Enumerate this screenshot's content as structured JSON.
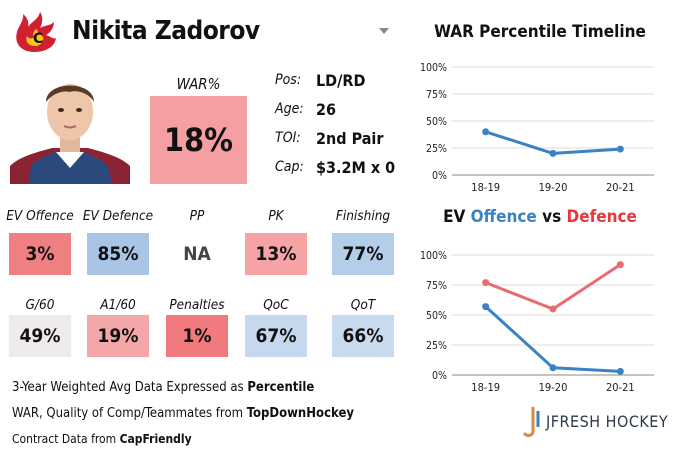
{
  "header": {
    "player_name": "Nikita Zadorov",
    "chevron_icon": "chevron-down-icon",
    "team_logo": "flames-logo"
  },
  "war": {
    "label": "WAR%",
    "value": "18%",
    "color": "#f4a0a3"
  },
  "bio": [
    {
      "label": "Pos:",
      "value": "LD/RD"
    },
    {
      "label": "Age:",
      "value": "26"
    },
    {
      "label": "TOI:",
      "value": "2nd Pair"
    },
    {
      "label": "Cap:",
      "value": "$3.2M x 0"
    }
  ],
  "metrics_row1": [
    {
      "label": "EV Offence",
      "value": "3%",
      "color": "#f07f82"
    },
    {
      "label": "EV Defence",
      "value": "85%",
      "color": "#a9c5e6"
    },
    {
      "label": "PP",
      "value": "NA",
      "color": "#ffffff"
    },
    {
      "label": "PK",
      "value": "13%",
      "color": "#f5a3a5"
    },
    {
      "label": "Finishing",
      "value": "77%",
      "color": "#b4cde9"
    }
  ],
  "metrics_row2": [
    {
      "label": "G/60",
      "value": "49%",
      "color": "#efebeb"
    },
    {
      "label": "A1/60",
      "value": "19%",
      "color": "#f4a7a9"
    },
    {
      "label": "Penalties",
      "value": "1%",
      "color": "#f07a7d"
    },
    {
      "label": "QoC",
      "value": "67%",
      "color": "#c5d8ee"
    },
    {
      "label": "QoT",
      "value": "66%",
      "color": "#c8daee"
    }
  ],
  "footer": {
    "line1_text": "3-Year Weighted Avg Data Expressed as ",
    "line1_bold": "Percentile",
    "line2_text": "WAR, Quality of Comp/Teammates from ",
    "line2_bold": "TopDownHockey",
    "line3_text": "Contract Data from ",
    "line3_bold": "CapFriendly",
    "brand": "JFRESH HOCKEY"
  },
  "chart_data": [
    {
      "type": "line",
      "title": "WAR Percentile Timeline",
      "x": [
        "18-19",
        "19-20",
        "20-21"
      ],
      "y_ticks": [
        "100%",
        "75%",
        "50%",
        "25%",
        "0%"
      ],
      "ylim": [
        0,
        100
      ],
      "grid": true,
      "series": [
        {
          "values": [
            40,
            20,
            24
          ],
          "color": "#3b82c4"
        }
      ]
    },
    {
      "type": "line",
      "title_parts": [
        "EV ",
        "Offence",
        " vs ",
        "Defence"
      ],
      "title_colors": [
        "#111111",
        "#3b82c4",
        "#111111",
        "#e8383b"
      ],
      "x": [
        "18-19",
        "19-20",
        "20-21"
      ],
      "y_ticks": [
        "100%",
        "75%",
        "50%",
        "25%",
        "0%"
      ],
      "ylim": [
        0,
        100
      ],
      "grid": true,
      "series": [
        {
          "values": [
            77,
            55,
            92
          ],
          "color": "#ea6b6e"
        },
        {
          "values": [
            57,
            6,
            3
          ],
          "color": "#3b82c4"
        }
      ]
    }
  ]
}
